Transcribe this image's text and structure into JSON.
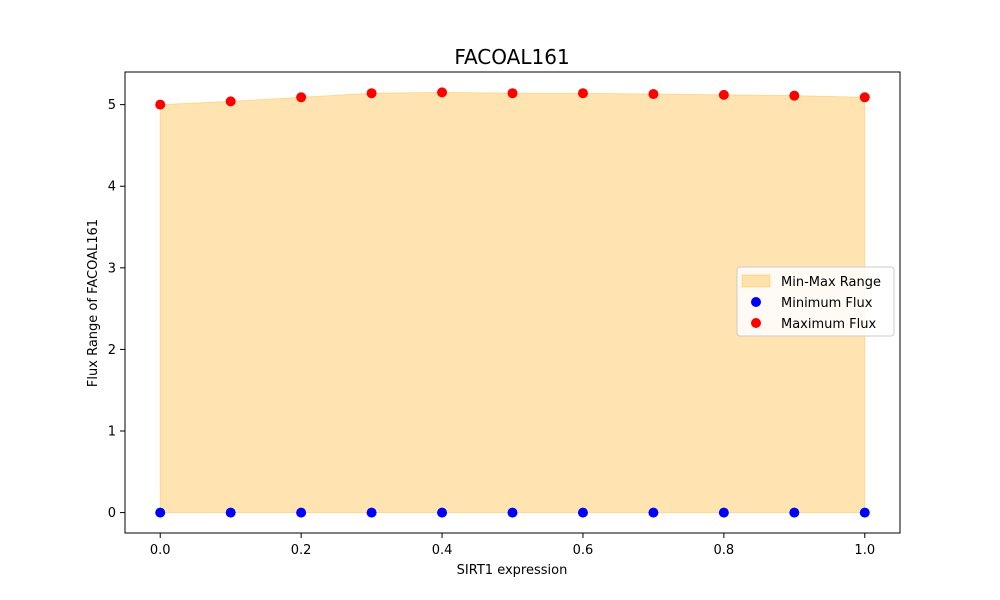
{
  "chart_data": {
    "type": "scatter",
    "title": "FACOAL161",
    "xlabel": "SIRT1 expression",
    "ylabel": "Flux Range of FACOAL161",
    "x": [
      0.0,
      0.1,
      0.2,
      0.3,
      0.4,
      0.5,
      0.6,
      0.7,
      0.8,
      0.9,
      1.0
    ],
    "xlim": [
      -0.05,
      1.05
    ],
    "ylim": [
      -0.25,
      5.4
    ],
    "xticks": [
      0.0,
      0.2,
      0.4,
      0.6,
      0.8,
      1.0
    ],
    "xtick_labels": [
      "0.0",
      "0.2",
      "0.4",
      "0.6",
      "0.8",
      "1.0"
    ],
    "yticks": [
      0,
      1,
      2,
      3,
      4,
      5
    ],
    "ytick_labels": [
      "0",
      "1",
      "2",
      "3",
      "4",
      "5"
    ],
    "series": [
      {
        "name": "Minimum Flux",
        "values": [
          0,
          0,
          0,
          0,
          0,
          0,
          0,
          0,
          0,
          0,
          0
        ],
        "color": "#0000ff"
      },
      {
        "name": "Maximum Flux",
        "values": [
          5.0,
          5.04,
          5.09,
          5.14,
          5.15,
          5.14,
          5.14,
          5.13,
          5.12,
          5.11,
          5.09
        ],
        "color": "#ff0000"
      }
    ],
    "fill": {
      "name": "Min-Max Range",
      "color": "#ffa500",
      "opacity": 0.3
    },
    "legend_placement": "center-right",
    "grid": false
  }
}
